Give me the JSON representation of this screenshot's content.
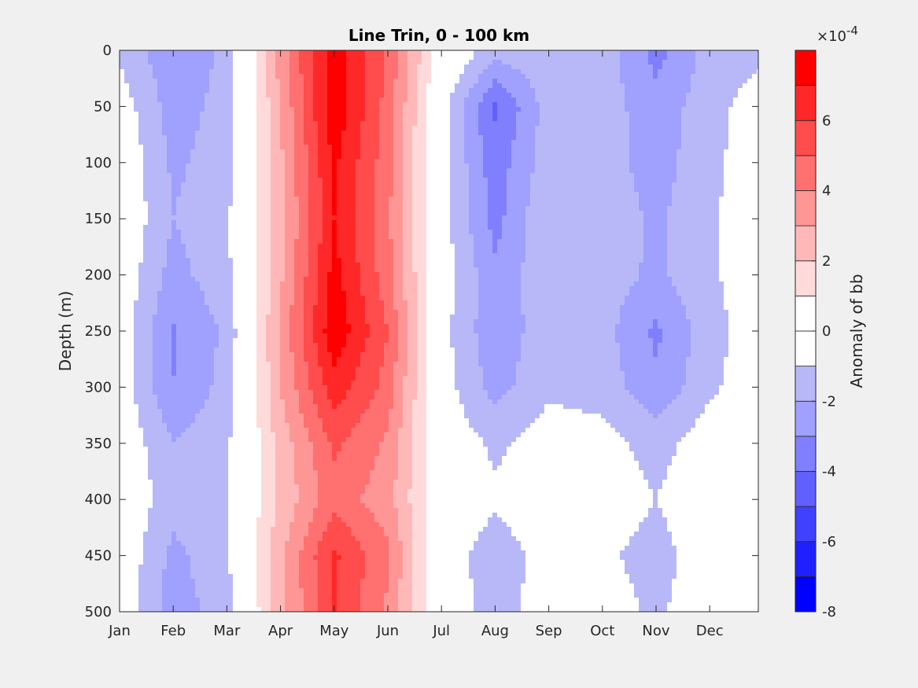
{
  "chart_data": {
    "type": "heatmap",
    "title": "Line Trin, 0 - 100 km",
    "xlabel": "",
    "ylabel": "Depth (m)",
    "x_ticks": [
      "Jan",
      "Feb",
      "Mar",
      "Apr",
      "May",
      "Jun",
      "Jul",
      "Aug",
      "Sep",
      "Oct",
      "Nov",
      "Dec"
    ],
    "y_ticks": [
      0,
      50,
      100,
      150,
      200,
      250,
      300,
      350,
      400,
      450,
      500
    ],
    "y_reversed": true,
    "ylim": [
      0,
      500
    ],
    "grid": false,
    "colorbar": {
      "label": "Anomaly of bb",
      "exponent_label": "×10",
      "exponent_power": "-4",
      "range": [
        -8,
        8
      ],
      "ticks": [
        -8,
        -6,
        -4,
        -2,
        0,
        2,
        4,
        6
      ],
      "levels": [
        {
          "from": -8,
          "to": -7,
          "color": "#0000ff"
        },
        {
          "from": -7,
          "to": -6,
          "color": "#2020ff"
        },
        {
          "from": -6,
          "to": -5,
          "color": "#4040ff"
        },
        {
          "from": -5,
          "to": -4,
          "color": "#6060ff"
        },
        {
          "from": -4,
          "to": -3,
          "color": "#8080ff"
        },
        {
          "from": -3,
          "to": -2,
          "color": "#a0a0ff"
        },
        {
          "from": -2,
          "to": -1,
          "color": "#b8b8f8"
        },
        {
          "from": -1,
          "to": 0,
          "color": "#ffffff"
        },
        {
          "from": 0,
          "to": 1,
          "color": "#ffffff"
        },
        {
          "from": 1,
          "to": 2,
          "color": "#ffdada"
        },
        {
          "from": 2,
          "to": 3,
          "color": "#ffb8b8"
        },
        {
          "from": 3,
          "to": 4,
          "color": "#ff9696"
        },
        {
          "from": 4,
          "to": 5,
          "color": "#ff7070"
        },
        {
          "from": 5,
          "to": 6,
          "color": "#ff4c4c"
        },
        {
          "from": 6,
          "to": 7,
          "color": "#ff2828"
        },
        {
          "from": 7,
          "to": 8,
          "color": "#ff0000"
        }
      ]
    },
    "month_profiles": [
      {
        "month": "Jan",
        "anomaly": [
          -1.2,
          -0.4,
          0.0,
          0.0,
          -0.2,
          -0.3,
          -0.3,
          -0.1,
          0.0,
          -0.1,
          -0.2
        ]
      },
      {
        "month": "Feb",
        "anomaly": [
          -2.8,
          -2.5,
          -2.2,
          -2.0,
          -2.4,
          -3.1,
          -3.0,
          -2.0,
          -1.6,
          -2.3,
          -2.6
        ]
      },
      {
        "month": "Mar",
        "anomaly": [
          -1.8,
          -1.6,
          -1.5,
          -1.2,
          -1.3,
          -1.8,
          -1.6,
          -1.2,
          -1.0,
          -1.2,
          -1.4
        ]
      },
      {
        "month": "Apr",
        "anomaly": [
          3.5,
          3.0,
          2.8,
          2.6,
          2.8,
          3.2,
          3.0,
          2.4,
          2.2,
          2.8,
          2.6
        ]
      },
      {
        "month": "May",
        "anomaly": [
          7.6,
          7.8,
          7.2,
          7.0,
          7.4,
          7.8,
          6.6,
          5.2,
          4.6,
          6.2,
          6.0
        ]
      },
      {
        "month": "Jun",
        "anomaly": [
          4.8,
          4.6,
          4.4,
          4.2,
          4.4,
          5.0,
          4.6,
          3.8,
          3.4,
          4.2,
          3.8
        ]
      },
      {
        "month": "Jul",
        "anomaly": [
          0.3,
          -0.5,
          -0.6,
          -0.5,
          -0.4,
          -0.6,
          -0.5,
          -0.2,
          -0.1,
          -0.4,
          -0.3
        ]
      },
      {
        "month": "Aug",
        "anomaly": [
          -1.6,
          -4.2,
          -3.6,
          -3.4,
          -2.8,
          -2.8,
          -2.4,
          -1.2,
          -0.8,
          -1.6,
          -1.4
        ]
      },
      {
        "month": "Sep",
        "anomaly": [
          -1.2,
          -1.5,
          -1.4,
          -1.0,
          -1.2,
          -1.3,
          -1.2,
          -0.5,
          -0.2,
          -0.6,
          -0.5
        ]
      },
      {
        "month": "Oct",
        "anomaly": [
          -1.4,
          -1.5,
          -1.6,
          -1.4,
          -1.5,
          -1.6,
          -1.4,
          -0.6,
          -0.4,
          -0.8,
          -0.5
        ]
      },
      {
        "month": "Nov",
        "anomaly": [
          -3.4,
          -2.6,
          -2.4,
          -2.2,
          -2.2,
          -3.2,
          -2.8,
          -1.4,
          -1.0,
          -1.4,
          -1.2
        ]
      },
      {
        "month": "Dec",
        "anomaly": [
          -1.6,
          -1.4,
          -1.4,
          -1.2,
          -1.2,
          -1.4,
          -1.2,
          -0.4,
          -0.2,
          -0.4,
          -0.3
        ]
      }
    ]
  }
}
